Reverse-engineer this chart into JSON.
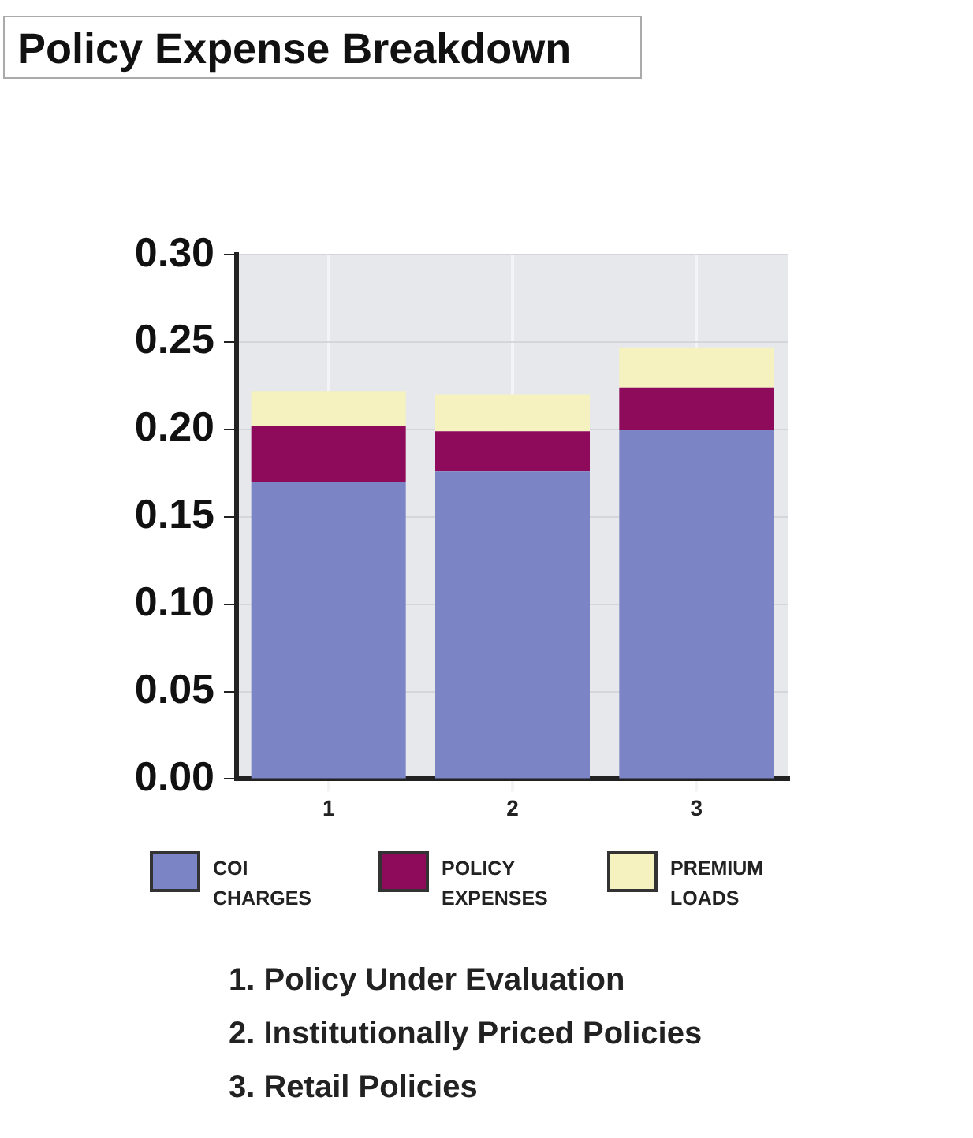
{
  "chart_data": {
    "type": "bar",
    "title": "Policy Expense Breakdown",
    "categories": [
      "1",
      "2",
      "3"
    ],
    "stacked": true,
    "series": [
      {
        "name": "COI CHARGES",
        "color": "#7b84c4",
        "values": [
          0.17,
          0.176,
          0.2
        ]
      },
      {
        "name": "POLICY EXPENSES",
        "color": "#8e0b5c",
        "values": [
          0.032,
          0.023,
          0.024
        ]
      },
      {
        "name": "PREMIUM LOADS",
        "color": "#f5f2bf",
        "values": [
          0.02,
          0.021,
          0.023
        ]
      }
    ],
    "ylim": [
      0,
      0.3
    ],
    "yticks": [
      {
        "value": 0,
        "label": "0.00"
      },
      {
        "value": 0.05,
        "label": "0.05"
      },
      {
        "value": 0.1,
        "label": "0.10"
      },
      {
        "value": 0.15,
        "label": "0.15"
      },
      {
        "value": 0.2,
        "label": "0.20"
      },
      {
        "value": 0.25,
        "label": "0.25"
      },
      {
        "value": 0.3,
        "label": "0.30"
      }
    ],
    "grid": true,
    "legend": "bottom",
    "annotations": [
      "1.  Policy Under Evaluation",
      "2.  Institutionally Priced Policies",
      "3.  Retail Policies"
    ]
  }
}
